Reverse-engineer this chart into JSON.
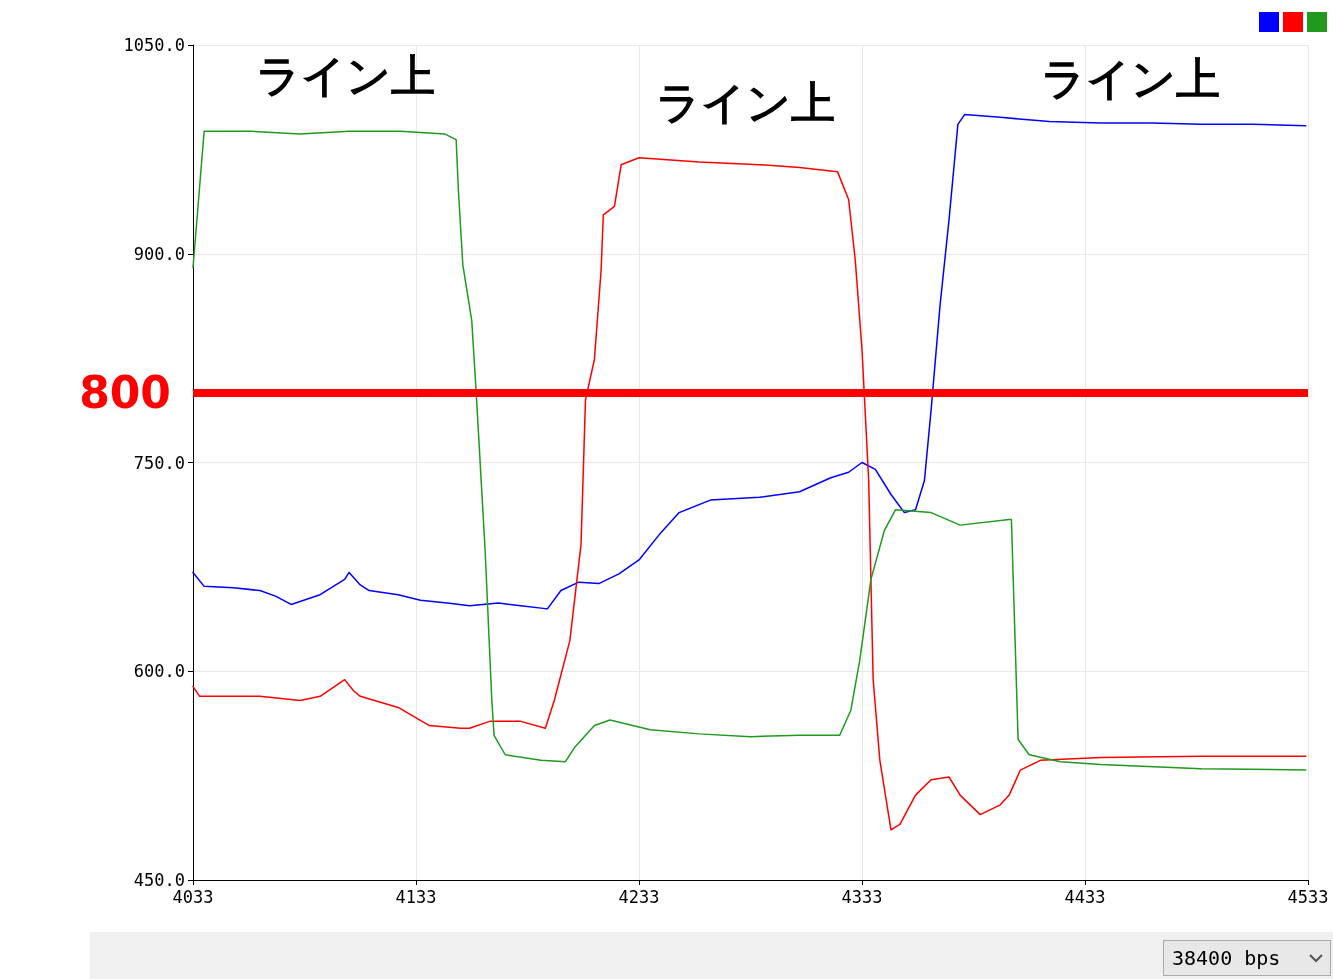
{
  "chart_data": {
    "type": "line",
    "series": [
      {
        "color": "#0000ff",
        "x": [
          4033,
          4038,
          4051,
          4063,
          4070,
          4077,
          4090,
          4101,
          4103,
          4108,
          4112,
          4125,
          4135,
          4147,
          4157,
          4170,
          4180,
          4191,
          4192,
          4198,
          4206,
          4215,
          4224,
          4233,
          4242,
          4251,
          4265,
          4287,
          4305,
          4319,
          4327,
          4333,
          4339,
          4346,
          4352,
          4357,
          4361,
          4364,
          4368,
          4372,
          4376,
          4379,
          4395,
          4417,
          4440,
          4463,
          4485,
          4508,
          4532
        ],
        "values": [
          671,
          661,
          660,
          658,
          654,
          648,
          655,
          666,
          671,
          662,
          658,
          655,
          651,
          649,
          647,
          649,
          647,
          645,
          645,
          658,
          664,
          663,
          670,
          680,
          698,
          714,
          723,
          725,
          729,
          739,
          743,
          750,
          745,
          727,
          714,
          716,
          737,
          788,
          863,
          924,
          993,
          1000,
          998,
          995,
          994,
          994,
          993,
          993,
          992
        ]
      },
      {
        "color": "#ff0000",
        "x": [
          4033,
          4036,
          4063,
          4081,
          4090,
          4101,
          4105,
          4108,
          4125,
          4139,
          4153,
          4157,
          4166,
          4180,
          4191,
          4195,
          4202,
          4207,
          4209,
          4213,
          4216,
          4217,
          4222,
          4225,
          4233,
          4260,
          4287,
          4305,
          4322,
          4327,
          4330,
          4333,
          4336,
          4338,
          4341,
          4346,
          4350,
          4357,
          4364,
          4372,
          4377,
          4386,
          4395,
          4399,
          4404,
          4413,
          4440,
          4485,
          4532
        ],
        "values": [
          589,
          582,
          582,
          579,
          582,
          594,
          586,
          582,
          574,
          561,
          559,
          559,
          564,
          564,
          559,
          579,
          622,
          691,
          795,
          824,
          888,
          928,
          934,
          964,
          969,
          966,
          964,
          962,
          959,
          939,
          895,
          831,
          737,
          594,
          536,
          486,
          490,
          511,
          522,
          524,
          511,
          497,
          504,
          511,
          529,
          536,
          538,
          539,
          539
        ]
      },
      {
        "color": "#1f9a1f",
        "x": [
          4033,
          4038,
          4059,
          4081,
          4103,
          4126,
          4146,
          4151,
          4152,
          4154,
          4158,
          4160,
          4164,
          4167,
          4168,
          4173,
          4189,
          4200,
          4204,
          4213,
          4220,
          4238,
          4260,
          4283,
          4305,
          4323,
          4328,
          4332,
          4337,
          4343,
          4348,
          4364,
          4377,
          4399,
          4400,
          4403,
          4408,
          4422,
          4440,
          4485,
          4532
        ],
        "values": [
          890,
          988,
          988,
          986,
          988,
          988,
          986,
          982,
          946,
          892,
          852,
          800,
          687,
          579,
          554,
          540,
          536,
          535,
          545,
          561,
          565,
          558,
          555,
          553,
          554,
          554,
          572,
          608,
          666,
          701,
          716,
          714,
          705,
          709,
          709,
          551,
          540,
          535,
          533,
          530,
          529
        ]
      }
    ],
    "xlim": [
      4033,
      4533
    ],
    "xticks": [
      4033,
      4133,
      4233,
      4333,
      4433,
      4533
    ],
    "ylim": [
      450,
      1050
    ],
    "yticks": [
      {
        "value": 450,
        "label": "450.0"
      },
      {
        "value": 600,
        "label": "600.0"
      },
      {
        "value": 750,
        "label": "750.0"
      },
      {
        "value": 900,
        "label": "900.0"
      },
      {
        "value": 1050,
        "label": "1050.0"
      }
    ],
    "grid": true,
    "marker": "none",
    "line_style": "solid",
    "ref_lines": [
      {
        "axis": "y",
        "value": 800,
        "label": "800",
        "color": "#ff0000"
      }
    ],
    "annotations": [
      "ライン上",
      "ライン上",
      "ライン上",
      "38400 bps"
    ]
  }
}
